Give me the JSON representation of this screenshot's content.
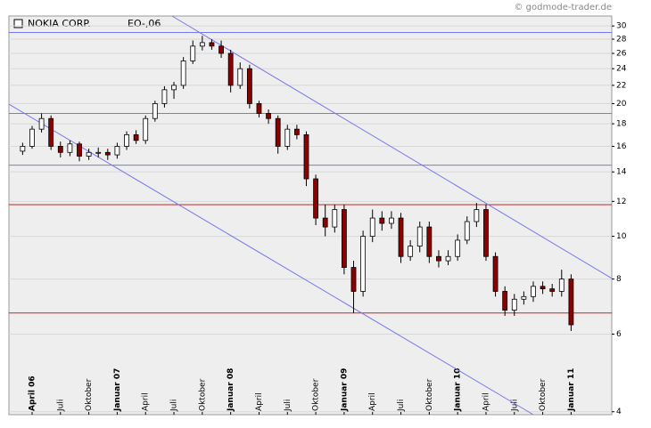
{
  "chart_data": {
    "type": "candlestick",
    "title": "NOKIA CORP.",
    "subtitle": "EO-,06",
    "source": "© godmode-trader.de",
    "yscale": "log",
    "grid": true,
    "ylim": [
      3.94,
      31.6
    ],
    "yticks": [
      4,
      6,
      8,
      10,
      12,
      14,
      16,
      18,
      20,
      22,
      24,
      26,
      28,
      30
    ],
    "xlim": [
      -2.45,
      61.3
    ],
    "xticks": [
      {
        "value": 0,
        "label": "April 06"
      },
      {
        "value": 3,
        "label": "Juli"
      },
      {
        "value": 6,
        "label": "Oktober"
      },
      {
        "value": 9,
        "label": "Januar 07"
      },
      {
        "value": 12,
        "label": "April"
      },
      {
        "value": 15,
        "label": "Juli"
      },
      {
        "value": 18,
        "label": "Oktober"
      },
      {
        "value": 21,
        "label": "Januar 08"
      },
      {
        "value": 24,
        "label": "April"
      },
      {
        "value": 27,
        "label": "Juli"
      },
      {
        "value": 30,
        "label": "Oktober"
      },
      {
        "value": 33,
        "label": "Januar 09"
      },
      {
        "value": 36,
        "label": "April"
      },
      {
        "value": 39,
        "label": "Juli"
      },
      {
        "value": 42,
        "label": "Oktober"
      },
      {
        "value": 45,
        "label": "Januar 10"
      },
      {
        "value": 48,
        "label": "April"
      },
      {
        "value": 51,
        "label": "Juli"
      },
      {
        "value": 54,
        "label": "Oktober"
      },
      {
        "value": 57,
        "label": "Januar 11"
      }
    ],
    "up_color": "#ffffff",
    "down_color": "#8b0000",
    "x": [
      -1,
      0,
      1,
      2,
      3,
      4,
      5,
      6,
      7,
      8,
      9,
      10,
      11,
      12,
      13,
      14,
      15,
      16,
      17,
      18,
      19,
      20,
      21,
      22,
      23,
      24,
      25,
      26,
      27,
      28,
      29,
      30,
      31,
      32,
      33,
      34,
      35,
      36,
      37,
      38,
      39,
      40,
      41,
      42,
      43,
      44,
      45,
      46,
      47,
      48,
      49,
      50,
      51,
      52,
      53,
      54,
      55,
      56,
      57
    ],
    "open": [
      15.6,
      16,
      17.5,
      18.5,
      16,
      15.5,
      16.2,
      15.2,
      15.5,
      15.5,
      15.3,
      16,
      17,
      16.5,
      18.5,
      20,
      21.5,
      22,
      25,
      27,
      27.5,
      27,
      26,
      22,
      24,
      20,
      19,
      18.5,
      16,
      17.5,
      17,
      13.5,
      11,
      10.5,
      11.5,
      8.5,
      7.5,
      10,
      11,
      10.7,
      11,
      9,
      9.5,
      10.5,
      9,
      8.8,
      9,
      9.8,
      10.8,
      11.5,
      9,
      7.5,
      6.8,
      7.2,
      7.3,
      7.7,
      7.6,
      7.5,
      8
    ],
    "high": [
      16.3,
      17.8,
      19,
      18.8,
      16.4,
      16.5,
      16.4,
      15.8,
      15.9,
      15.8,
      16.3,
      17.3,
      17.4,
      18.8,
      20.3,
      21.9,
      22.4,
      25.5,
      27.8,
      28.5,
      28,
      27.8,
      26.5,
      24.8,
      24.5,
      20.3,
      19.4,
      18.8,
      17.9,
      17.9,
      17.3,
      13.8,
      11.8,
      11.8,
      11.8,
      8.8,
      10.3,
      11.5,
      11.4,
      11.4,
      11.3,
      9.8,
      10.8,
      10.8,
      9.3,
      9.3,
      10.1,
      11.1,
      11.9,
      11.8,
      9.2,
      7.7,
      7.4,
      7.5,
      7.9,
      7.9,
      7.8,
      8.4,
      8.2
    ],
    "low": [
      15.3,
      15.8,
      17.2,
      15.7,
      15.1,
      15.2,
      14.8,
      14.9,
      15.1,
      14.9,
      15,
      15.7,
      16.2,
      16.2,
      18.2,
      19.6,
      20.5,
      21.6,
      24.6,
      26.4,
      26.5,
      25.4,
      21.2,
      21.6,
      19.5,
      18.6,
      18,
      15.4,
      15.7,
      16.6,
      13,
      10.6,
      10,
      10.2,
      8.2,
      6.7,
      7.3,
      9.7,
      10.3,
      10.4,
      8.7,
      8.8,
      9.2,
      8.7,
      8.5,
      8.6,
      8.8,
      9.6,
      10.5,
      8.8,
      7.3,
      6.6,
      6.6,
      7,
      7.1,
      7.4,
      7.3,
      7.3,
      6.1
    ],
    "close": [
      16,
      17.5,
      18.5,
      16,
      15.5,
      16.2,
      15.2,
      15.5,
      15.5,
      15.3,
      16,
      17,
      16.5,
      18.5,
      20,
      21.5,
      22,
      25,
      27,
      27.5,
      27,
      26,
      22,
      24,
      20,
      19,
      18.5,
      16,
      17.5,
      17,
      13.5,
      11,
      10.5,
      11.5,
      8.5,
      7.5,
      10,
      11,
      10.7,
      11,
      9,
      9.5,
      10.5,
      9,
      8.8,
      9,
      9.8,
      10.8,
      11.5,
      9,
      7.5,
      6.8,
      7.2,
      7.3,
      7.7,
      7.6,
      7.5,
      8,
      6.3
    ],
    "hlines": [
      {
        "value": 29,
        "color": "#7777ee"
      },
      {
        "value": 19,
        "color": "#7777ee"
      },
      {
        "value": 14.5,
        "color": "#7777ee"
      },
      {
        "value": 11.8,
        "color": "#cc2222"
      },
      {
        "value": 6.7,
        "color": "#cc2222"
      }
    ],
    "trendlines": [
      {
        "x": [
          -2.45,
          53
        ],
        "y": [
          19.94,
          3.94
        ],
        "color": "#7777ee"
      },
      {
        "x": [
          14.8,
          61.3
        ],
        "y": [
          31.6,
          8.03
        ],
        "color": "#7777ee"
      }
    ]
  }
}
